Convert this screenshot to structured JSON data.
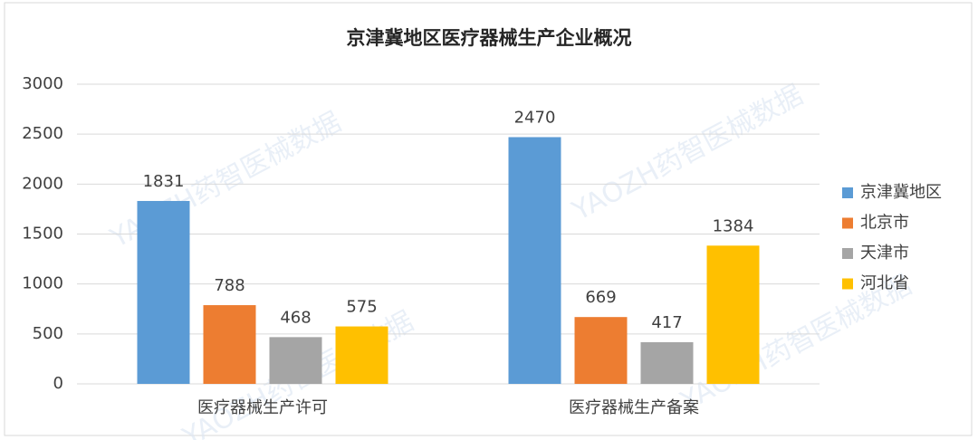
{
  "chart_data": {
    "type": "bar",
    "title": "京津冀地区医疗器械生产企业概况",
    "watermark": "YAOZH药智医械数据",
    "categories": [
      "医疗器械生产许可",
      "医疗器械生产备案"
    ],
    "series": [
      {
        "name": "京津冀地区",
        "color": "#5b9bd5",
        "values": [
          1831,
          2470
        ]
      },
      {
        "name": "北京市",
        "color": "#ed7d31",
        "values": [
          788,
          669
        ]
      },
      {
        "name": "天津市",
        "color": "#a5a5a5",
        "values": [
          468,
          417
        ]
      },
      {
        "name": "河北省",
        "color": "#ffc000",
        "values": [
          575,
          1384
        ]
      }
    ],
    "ylim": [
      0,
      3000
    ],
    "yticks": [
      0,
      500,
      1000,
      1500,
      2000,
      2500,
      3000
    ],
    "grid": true,
    "legend": "right"
  }
}
